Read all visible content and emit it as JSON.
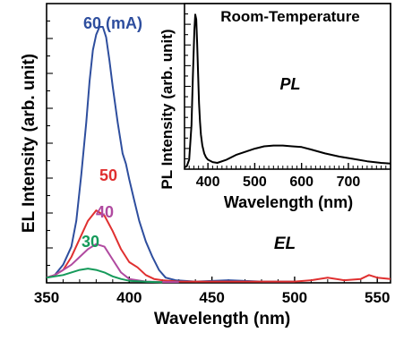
{
  "chart_data": [
    {
      "type": "line",
      "xlabel": "Wavelength (nm)",
      "ylabel": "EL Intensity (arb. unit)",
      "xlim": [
        350,
        558
      ],
      "ylim": [
        0,
        1.08
      ],
      "x_ticks": [
        350,
        400,
        450,
        500,
        550
      ],
      "annotation": "EL",
      "series": [
        {
          "name": "60 (mA)",
          "color": "#2e4e9e",
          "x": [
            350,
            355,
            360,
            365,
            368,
            371,
            374,
            376,
            378,
            380,
            382,
            384,
            386,
            388,
            390,
            393,
            396,
            398,
            400,
            403,
            406,
            410,
            414,
            418,
            422,
            428,
            440,
            460,
            480,
            500
          ],
          "y": [
            0.02,
            0.03,
            0.07,
            0.14,
            0.24,
            0.42,
            0.62,
            0.78,
            0.9,
            0.96,
            0.99,
            0.99,
            0.95,
            0.86,
            0.76,
            0.62,
            0.5,
            0.46,
            0.4,
            0.32,
            0.24,
            0.16,
            0.1,
            0.05,
            0.02,
            0.01,
            0.005,
            0.01,
            0.005,
            0.005
          ]
        },
        {
          "name": "50",
          "color": "#e03030",
          "x": [
            350,
            355,
            360,
            365,
            370,
            375,
            380,
            385,
            390,
            395,
            400,
            405,
            410,
            415,
            420,
            430,
            450,
            470,
            490,
            500,
            510,
            520,
            530,
            540,
            545,
            550,
            558
          ],
          "y": [
            0.02,
            0.03,
            0.05,
            0.1,
            0.17,
            0.24,
            0.28,
            0.26,
            0.2,
            0.13,
            0.08,
            0.06,
            0.03,
            0.015,
            0.01,
            0.005,
            0.005,
            0.005,
            0.005,
            0.005,
            0.01,
            0.02,
            0.01,
            0.015,
            0.03,
            0.02,
            0.015
          ]
        },
        {
          "name": "40",
          "color": "#b04aa0",
          "x": [
            350,
            355,
            360,
            365,
            370,
            375,
            380,
            385,
            390,
            395,
            400,
            410,
            420,
            430
          ],
          "y": [
            0.02,
            0.03,
            0.05,
            0.07,
            0.1,
            0.13,
            0.15,
            0.14,
            0.09,
            0.04,
            0.015,
            0.005,
            0.003,
            0.003
          ]
        },
        {
          "name": "30",
          "color": "#159a5a",
          "x": [
            350,
            355,
            360,
            365,
            370,
            375,
            380,
            385,
            390,
            395,
            400,
            410,
            420
          ],
          "y": [
            0.02,
            0.025,
            0.03,
            0.04,
            0.05,
            0.055,
            0.05,
            0.04,
            0.025,
            0.015,
            0.008,
            0.004,
            0.002
          ]
        }
      ]
    },
    {
      "type": "line",
      "title": "Room-Temperature",
      "xlabel": "Wavelength (nm)",
      "ylabel": "PL Intensity (arb. unit)",
      "xlim": [
        350,
        790
      ],
      "ylim": [
        0,
        1.05
      ],
      "x_ticks": [
        400,
        500,
        600,
        700
      ],
      "annotation": "PL",
      "series": [
        {
          "color": "#000000",
          "x": [
            350,
            355,
            360,
            365,
            368,
            371,
            373,
            375,
            377,
            379,
            381,
            383,
            385,
            388,
            392,
            396,
            400,
            410,
            420,
            440,
            460,
            480,
            500,
            520,
            540,
            560,
            580,
            600,
            620,
            650,
            680,
            710,
            740,
            770,
            790
          ],
          "y": [
            0.01,
            0.02,
            0.06,
            0.28,
            0.6,
            0.88,
            0.98,
            0.95,
            0.8,
            0.6,
            0.42,
            0.3,
            0.22,
            0.15,
            0.1,
            0.075,
            0.06,
            0.045,
            0.04,
            0.06,
            0.09,
            0.11,
            0.13,
            0.145,
            0.15,
            0.15,
            0.145,
            0.14,
            0.125,
            0.1,
            0.08,
            0.065,
            0.05,
            0.04,
            0.035
          ]
        }
      ]
    }
  ]
}
